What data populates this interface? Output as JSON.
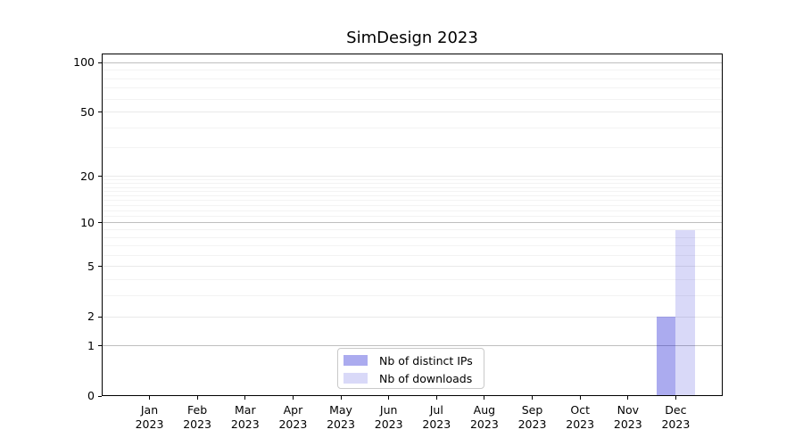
{
  "figure": {
    "background": "#ffffff"
  },
  "chart_data": {
    "type": "bar",
    "title": "SimDesign 2023",
    "categories": [
      "Jan 2023",
      "Feb 2023",
      "Mar 2023",
      "Apr 2023",
      "May 2023",
      "Jun 2023",
      "Jul 2023",
      "Aug 2023",
      "Sep 2023",
      "Oct 2023",
      "Nov 2023",
      "Dec 2023"
    ],
    "series": [
      {
        "name": "Nb of distinct IPs",
        "color": "rgba(0,0,205,0.33)",
        "values": [
          0,
          0,
          0,
          0,
          0,
          0,
          0,
          0,
          0,
          0,
          0,
          2
        ]
      },
      {
        "name": "Nb of downloads",
        "color": "rgba(0,0,205,0.15)",
        "values": [
          0,
          0,
          0,
          0,
          0,
          0,
          0,
          0,
          0,
          0,
          0,
          9
        ]
      }
    ],
    "xlabel": "",
    "ylabel": "",
    "yscale": "log1p",
    "ylim": [
      0,
      114
    ],
    "yticks": [
      0,
      1,
      2,
      5,
      10,
      20,
      50,
      100
    ],
    "yticks_emphasis": [
      1,
      10,
      100
    ],
    "yticks_mid": [
      2,
      5,
      20,
      50
    ],
    "yticks_minor": [
      3,
      4,
      6,
      7,
      8,
      9,
      11,
      12,
      13,
      14,
      15,
      16,
      17,
      18,
      19,
      30,
      40,
      60,
      70,
      80,
      90
    ],
    "grid": "both",
    "legend_position": "lower center"
  },
  "colors": {
    "grid_major": "#bfbfbf",
    "grid_mid": "#e9e9e9",
    "grid_minor": "#f3f3f3",
    "spine": "#000000",
    "text": "#000000"
  }
}
